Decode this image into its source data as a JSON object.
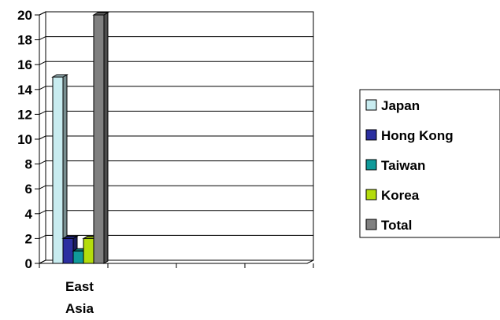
{
  "chart_data": {
    "type": "bar",
    "categories": [
      "East Asia"
    ],
    "category_label_lines": [
      "East",
      "Asia"
    ],
    "ylim": [
      0,
      20
    ],
    "yticks": [
      0,
      2,
      4,
      6,
      8,
      10,
      12,
      14,
      16,
      18,
      20
    ],
    "ytick_labels": [
      "0",
      "2",
      "4",
      "6",
      "8",
      "10",
      "12",
      "14",
      "16",
      "18",
      "20"
    ],
    "grid": true,
    "three_d": true,
    "legend_position": "right",
    "series": [
      {
        "name": "Japan",
        "values": [
          15
        ],
        "color": "#c8ecf0"
      },
      {
        "name": "Hong Kong",
        "values": [
          2
        ],
        "color": "#2b2fa0"
      },
      {
        "name": "Taiwan",
        "values": [
          1
        ],
        "color": "#109a9a"
      },
      {
        "name": "Korea",
        "values": [
          2
        ],
        "color": "#b4dc0c"
      },
      {
        "name": "Total",
        "values": [
          20
        ],
        "color": "#808080"
      }
    ]
  }
}
